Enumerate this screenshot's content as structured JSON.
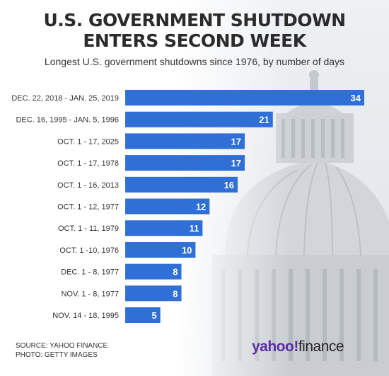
{
  "header": {
    "title_line1": "U.S. GOVERNMENT SHUTDOWN",
    "title_line2": "ENTERS SECOND WEEK",
    "subtitle": "Longest U.S. government shutdowns since 1976, by number of days"
  },
  "footer": {
    "source": "SOURCE: YAHOO FINANCE",
    "photo": "PHOTO: GETTY IMAGES",
    "brand_yahoo": "yahoo!",
    "brand_finance": "finance"
  },
  "colors": {
    "bar": "#2f6fd6",
    "label_text": "#333333",
    "value_text": "#ffffff"
  },
  "chart_data": {
    "type": "bar",
    "orientation": "horizontal",
    "categories": [
      "DEC. 22, 2018 - JAN. 25, 2019",
      "DEC. 16, 1995 - JAN. 5, 1996",
      "OCT. 1 - 17, 2025",
      "OCT. 1 - 17, 1978",
      "OCT. 1 - 16, 2013",
      "OCT. 1 - 12, 1977",
      "OCT. 1 - 11, 1979",
      "OCT. 1 -10, 1976",
      "DEC. 1 - 8, 1977",
      "NOV. 1 - 8, 1977",
      "NOV. 14 - 18, 1995"
    ],
    "values": [
      34,
      21,
      17,
      17,
      16,
      12,
      11,
      10,
      8,
      8,
      5
    ],
    "xlim": [
      0,
      34
    ],
    "grid": false,
    "data_labels": true
  }
}
